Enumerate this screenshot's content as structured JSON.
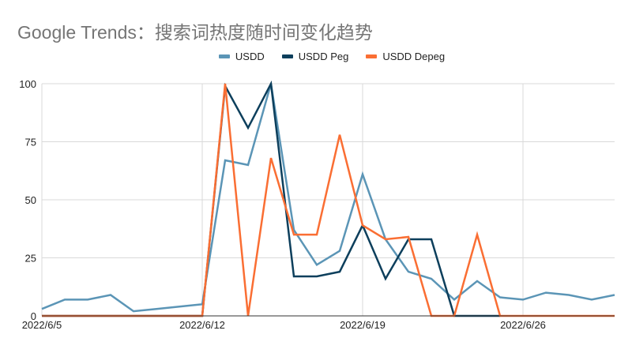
{
  "title": "Google Trends：搜索词热度随时间变化趋势",
  "legend": [
    {
      "label": "USDD",
      "color": "#5b95b6"
    },
    {
      "label": "USDD Peg",
      "color": "#0d3f5c"
    },
    {
      "label": "USDD Depeg",
      "color": "#fa6e33"
    }
  ],
  "chart_data": {
    "type": "line",
    "title": "Google Trends：搜索词热度随时间变化趋势",
    "xlabel": "",
    "ylabel": "",
    "ylim": [
      0,
      100
    ],
    "yticks": [
      0,
      25,
      50,
      75,
      100
    ],
    "xtick_labels": [
      "2022/6/5",
      "2022/6/12",
      "2022/6/19",
      "2022/6/26"
    ],
    "grid": true,
    "legend_position": "top",
    "x": [
      "2022/6/5",
      "2022/6/6",
      "2022/6/7",
      "2022/6/8",
      "2022/6/9",
      "2022/6/10",
      "2022/6/11",
      "2022/6/12",
      "2022/6/13",
      "2022/6/14",
      "2022/6/15",
      "2022/6/16",
      "2022/6/17",
      "2022/6/18",
      "2022/6/19",
      "2022/6/20",
      "2022/6/21",
      "2022/6/22",
      "2022/6/23",
      "2022/6/24",
      "2022/6/25",
      "2022/6/26",
      "2022/6/27",
      "2022/6/28",
      "2022/6/29",
      "2022/6/30"
    ],
    "series": [
      {
        "name": "USDD",
        "color": "#5b95b6",
        "values": [
          3,
          7,
          7,
          9,
          2,
          3,
          4,
          5,
          67,
          65,
          100,
          37,
          22,
          28,
          61,
          33,
          19,
          16,
          7,
          15,
          8,
          7,
          10,
          9,
          7,
          9
        ]
      },
      {
        "name": "USDD Peg",
        "color": "#0d3f5c",
        "values": [
          0,
          0,
          0,
          0,
          0,
          0,
          0,
          0,
          99,
          81,
          100,
          17,
          17,
          19,
          39,
          16,
          33,
          33,
          0,
          0,
          0,
          null,
          null,
          null,
          null,
          null
        ]
      },
      {
        "name": "USDD Depeg",
        "color": "#fa6e33",
        "values": [
          0,
          0,
          0,
          0,
          0,
          0,
          0,
          0,
          100,
          0,
          68,
          35,
          35,
          78,
          39,
          33,
          34,
          0,
          0,
          35,
          0,
          0,
          0,
          0,
          0,
          0
        ]
      }
    ]
  }
}
